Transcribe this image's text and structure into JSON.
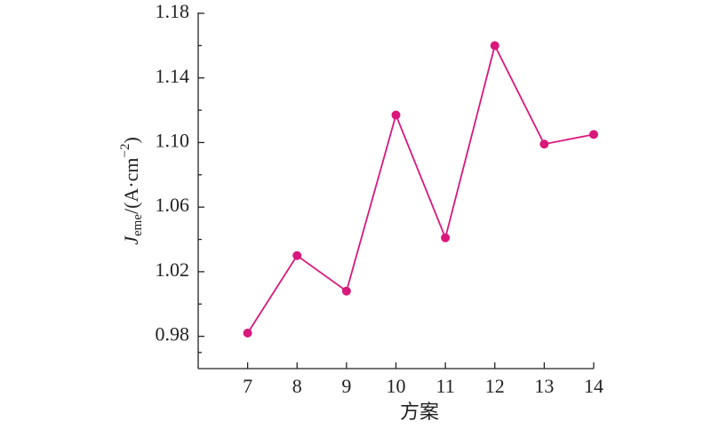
{
  "chart_data": {
    "type": "line",
    "xlabel": "方案",
    "ylabel": {
      "symbol": "J",
      "subscript": "eme",
      "unit": "/(A·cm",
      "superscript": "−2",
      "close": ")"
    },
    "x": [
      7,
      8,
      9,
      10,
      11,
      12,
      13,
      14
    ],
    "series": [
      {
        "color": "#d9187c",
        "values": [
          0.982,
          1.03,
          1.008,
          1.117,
          1.041,
          1.16,
          1.099,
          1.105
        ]
      }
    ],
    "xlim": [
      6,
      14
    ],
    "xticks": [
      7,
      8,
      9,
      10,
      11,
      12,
      13,
      14
    ],
    "ylim": [
      0.96,
      1.18
    ],
    "yticks": [
      0.98,
      1.02,
      1.06,
      {
        "value": 1.1,
        "label": "1.10"
      },
      1.14,
      1.18
    ]
  }
}
